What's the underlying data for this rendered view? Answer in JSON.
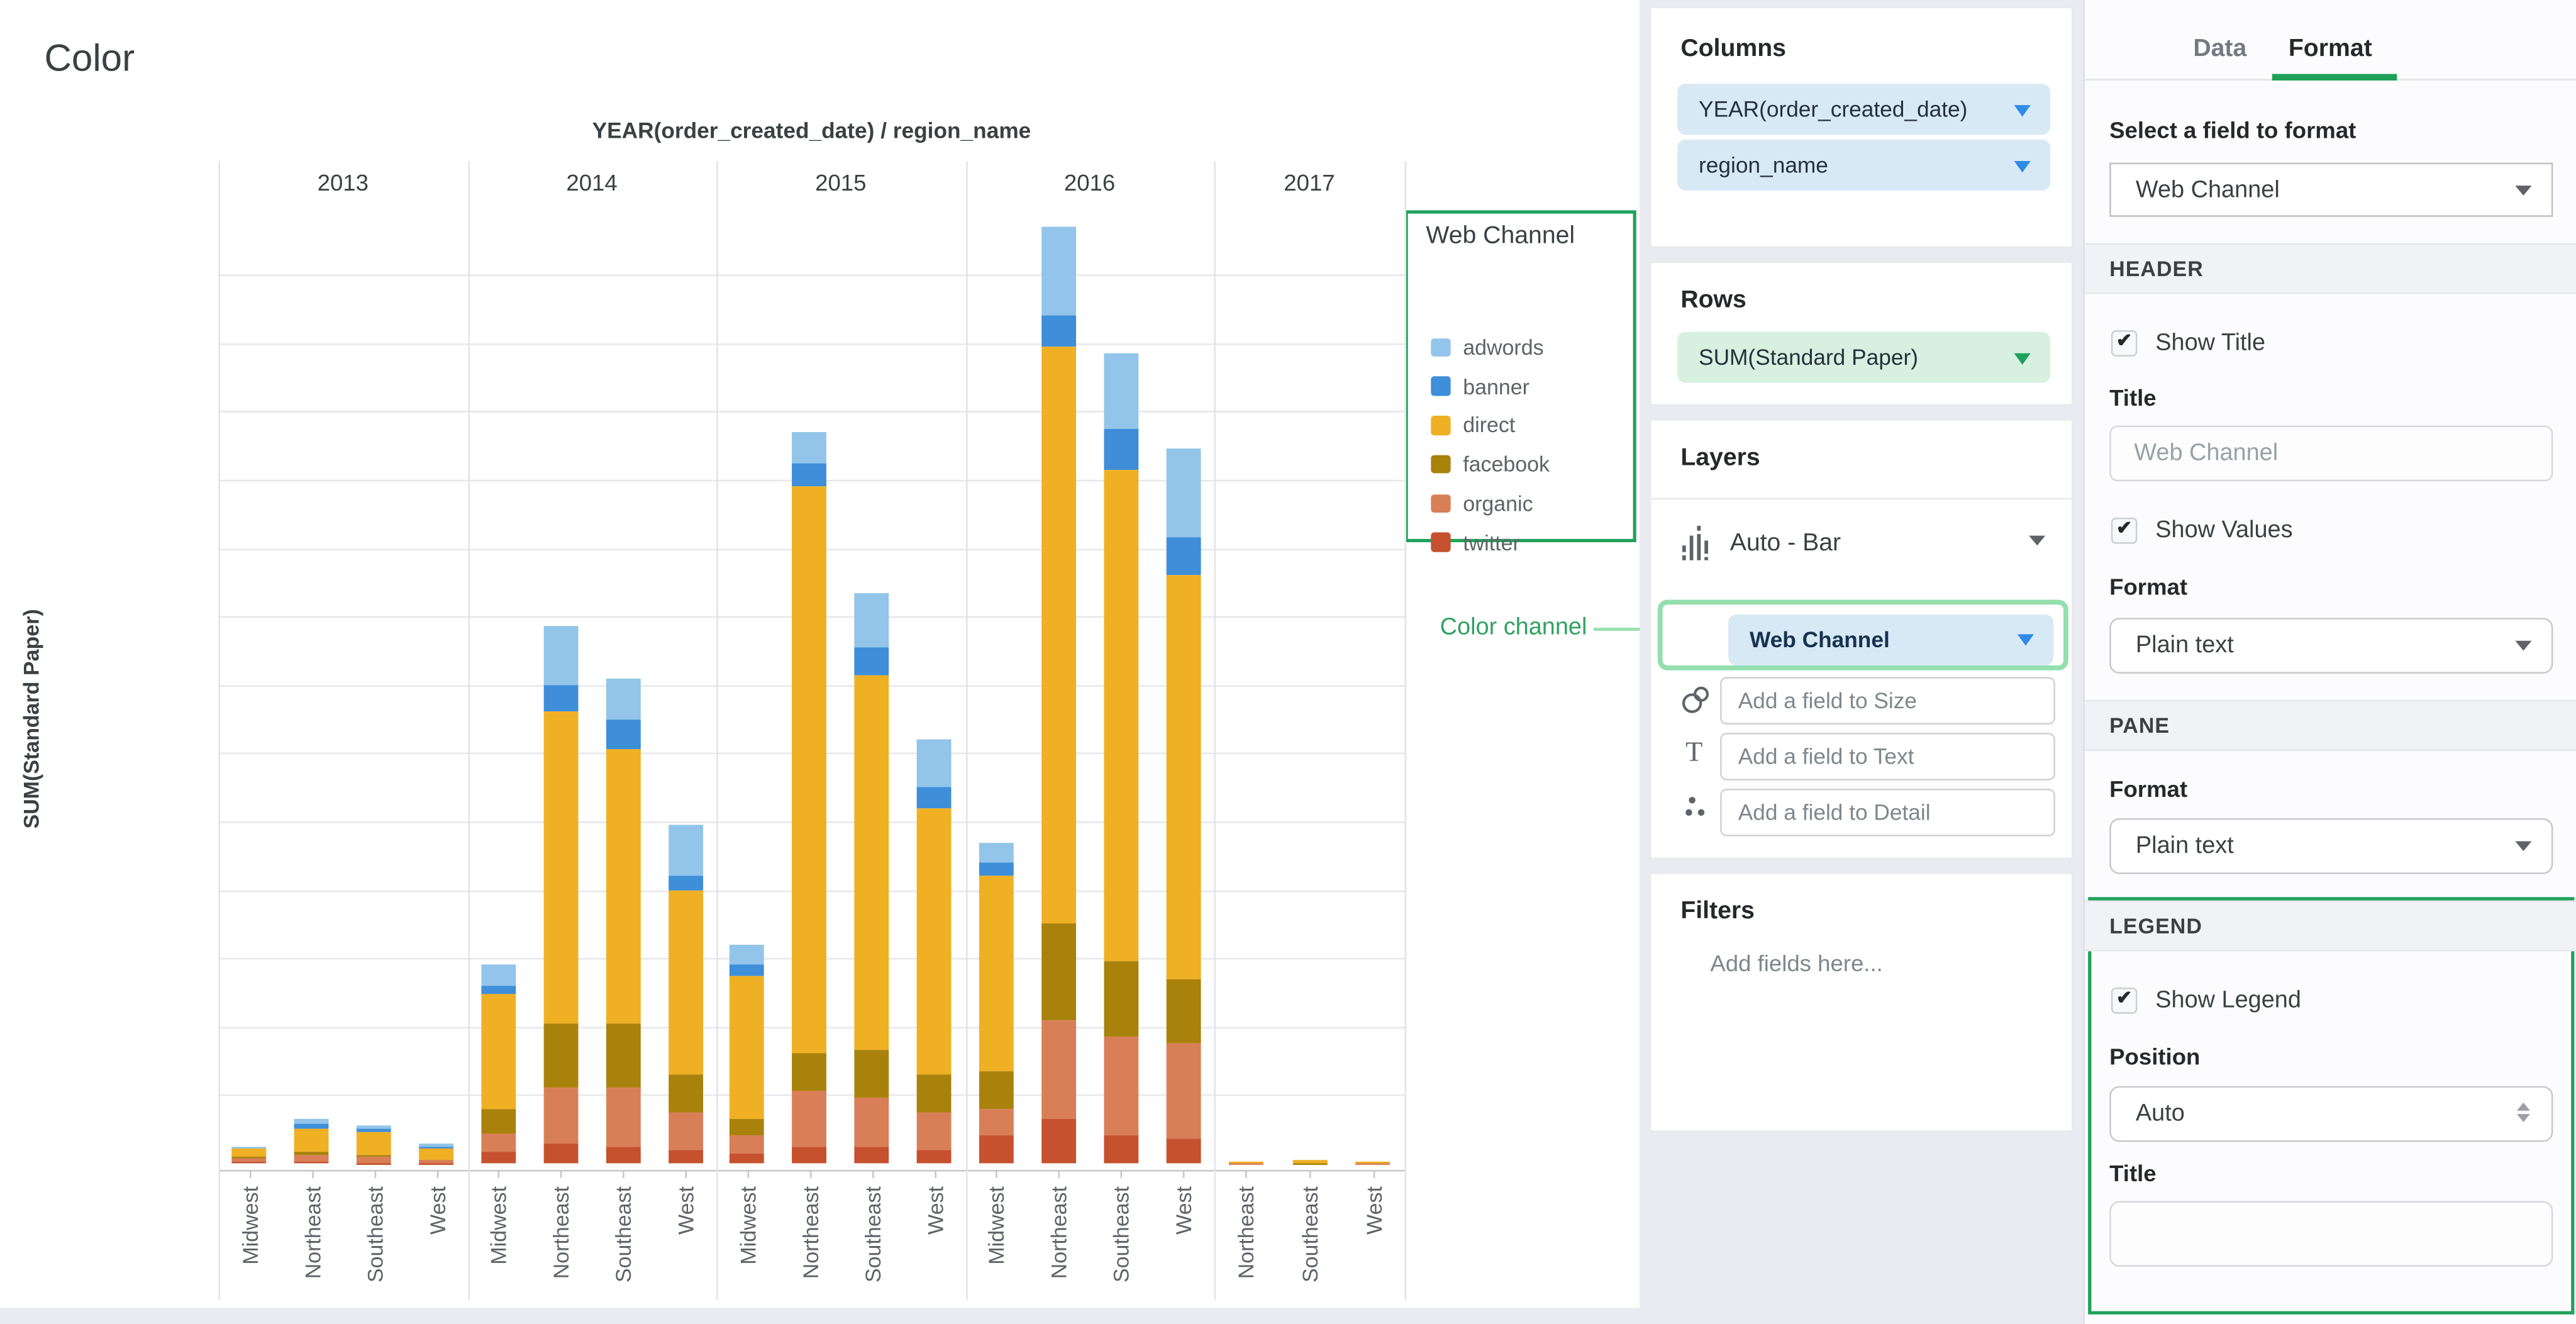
{
  "chart": {
    "title": "Color",
    "axis_header": "YEAR(order_created_date) / region_name",
    "y_axis_title": "SUM(Standard Paper)",
    "legend": {
      "title": "Web Channel"
    },
    "annotation": {
      "label": "Color channel"
    }
  },
  "chart_data": {
    "type": "bar",
    "stacked": true,
    "title": "Color",
    "xlabel": "YEAR(order_created_date) / region_name",
    "ylabel": "SUM(Standard Paper)",
    "ylim": [
      0,
      14000000
    ],
    "y_ticks": [
      0,
      1000000,
      2000000,
      3000000,
      4000000,
      5000000,
      6000000,
      7000000,
      8000000,
      9000000,
      10000000,
      11000000,
      12000000,
      13000000
    ],
    "grid": true,
    "legend_position": "right",
    "stack_order": [
      "twitter",
      "organic",
      "facebook",
      "direct",
      "banner",
      "adwords"
    ],
    "legend_order": [
      "adwords",
      "banner",
      "direct",
      "facebook",
      "organic",
      "twitter"
    ],
    "colors": {
      "adwords": "#92C5E9",
      "banner": "#3E8ED9",
      "direct": "#F0B023",
      "facebook": "#A9820C",
      "organic": "#D97F58",
      "twitter": "#C6512E"
    },
    "groups": [
      {
        "year": "2013",
        "bars": [
          {
            "region": "Midwest",
            "values": {
              "twitter": 30000,
              "organic": 50000,
              "facebook": 20000,
              "direct": 120000,
              "banner": 5000,
              "adwords": 15000
            }
          },
          {
            "region": "Northeast",
            "values": {
              "twitter": 20000,
              "organic": 90000,
              "facebook": 70000,
              "direct": 320000,
              "banner": 80000,
              "adwords": 60000
            }
          },
          {
            "region": "Southeast",
            "values": {
              "twitter": 10000,
              "organic": 80000,
              "facebook": 40000,
              "direct": 320000,
              "banner": 60000,
              "adwords": 50000
            }
          },
          {
            "region": "West",
            "values": {
              "twitter": 10000,
              "organic": 40000,
              "facebook": 10000,
              "direct": 150000,
              "banner": 25000,
              "adwords": 45000
            }
          }
        ]
      },
      {
        "year": "2014",
        "bars": [
          {
            "region": "Midwest",
            "values": {
              "twitter": 160000,
              "organic": 280000,
              "facebook": 350000,
              "direct": 1690000,
              "banner": 120000,
              "adwords": 300000
            }
          },
          {
            "region": "Northeast",
            "values": {
              "twitter": 300000,
              "organic": 800000,
              "facebook": 950000,
              "direct": 4550000,
              "banner": 400000,
              "adwords": 850000
            }
          },
          {
            "region": "Southeast",
            "values": {
              "twitter": 250000,
              "organic": 850000,
              "facebook": 950000,
              "direct": 4000000,
              "banner": 450000,
              "adwords": 600000
            }
          },
          {
            "region": "West",
            "values": {
              "twitter": 200000,
              "organic": 550000,
              "facebook": 550000,
              "direct": 2700000,
              "banner": 200000,
              "adwords": 750000
            }
          }
        ]
      },
      {
        "year": "2015",
        "bars": [
          {
            "region": "Midwest",
            "values": {
              "twitter": 150000,
              "organic": 250000,
              "facebook": 250000,
              "direct": 2100000,
              "banner": 150000,
              "adwords": 300000
            }
          },
          {
            "region": "Northeast",
            "values": {
              "twitter": 250000,
              "organic": 800000,
              "facebook": 550000,
              "direct": 8300000,
              "banner": 350000,
              "adwords": 450000
            }
          },
          {
            "region": "Southeast",
            "values": {
              "twitter": 250000,
              "organic": 700000,
              "facebook": 700000,
              "direct": 5500000,
              "banner": 400000,
              "adwords": 800000
            }
          },
          {
            "region": "West",
            "values": {
              "twitter": 200000,
              "organic": 550000,
              "facebook": 550000,
              "direct": 3900000,
              "banner": 300000,
              "adwords": 700000
            }
          }
        ]
      },
      {
        "year": "2016",
        "bars": [
          {
            "region": "Midwest",
            "values": {
              "twitter": 400000,
              "organic": 400000,
              "facebook": 550000,
              "direct": 2850000,
              "banner": 200000,
              "adwords": 300000
            }
          },
          {
            "region": "Northeast",
            "values": {
              "twitter": 650000,
              "organic": 1450000,
              "facebook": 1400000,
              "direct": 8450000,
              "banner": 450000,
              "adwords": 1300000
            }
          },
          {
            "region": "Southeast",
            "values": {
              "twitter": 400000,
              "organic": 1450000,
              "facebook": 1100000,
              "direct": 7200000,
              "banner": 600000,
              "adwords": 1100000
            }
          },
          {
            "region": "West",
            "values": {
              "twitter": 350000,
              "organic": 1400000,
              "facebook": 950000,
              "direct": 5900000,
              "banner": 550000,
              "adwords": 1300000
            }
          }
        ]
      },
      {
        "year": "2017",
        "bars": [
          {
            "region": "Northeast",
            "values": {
              "twitter": 0,
              "organic": 10000,
              "facebook": 0,
              "direct": 20000,
              "banner": 0,
              "adwords": 0
            }
          },
          {
            "region": "Southeast",
            "values": {
              "twitter": 0,
              "organic": 0,
              "facebook": 10000,
              "direct": 50000,
              "banner": 0,
              "adwords": 0
            }
          },
          {
            "region": "West",
            "values": {
              "twitter": 0,
              "organic": 5000,
              "facebook": 0,
              "direct": 10000,
              "banner": 0,
              "adwords": 0
            }
          }
        ]
      }
    ]
  },
  "columns_panel": {
    "title": "Columns",
    "fields": [
      {
        "label": "YEAR(order_created_date)"
      },
      {
        "label": "region_name"
      }
    ]
  },
  "rows_panel": {
    "title": "Rows",
    "fields": [
      {
        "label": "SUM(Standard Paper)"
      }
    ]
  },
  "layers_panel": {
    "title": "Layers",
    "chart_type": "Auto - Bar",
    "color_field": "Web Channel",
    "size_placeholder": "Add a field to Size",
    "text_placeholder": "Add a field to Text",
    "detail_placeholder": "Add a field to Detail"
  },
  "filters_panel": {
    "title": "Filters",
    "placeholder": "Add fields here..."
  },
  "format_panel": {
    "tab_data": "Data",
    "tab_format": "Format",
    "active_tab": "Format",
    "select_field_label": "Select a field to format",
    "selected_field": "Web Channel",
    "header_section": {
      "title": "HEADER",
      "show_title_label": "Show Title",
      "show_title_checked": true,
      "title_label": "Title",
      "title_placeholder": "Web Channel",
      "show_values_label": "Show Values",
      "show_values_checked": true,
      "format_label": "Format",
      "format_value": "Plain text"
    },
    "pane_section": {
      "title": "PANE",
      "format_label": "Format",
      "format_value": "Plain text"
    },
    "legend_section": {
      "title": "LEGEND",
      "show_legend_label": "Show Legend",
      "show_legend_checked": true,
      "position_label": "Position",
      "position_value": "Auto",
      "title_label": "Title",
      "title_value": ""
    }
  },
  "accent_colors": {
    "highlight_green": "#1FA15A",
    "soft_green": "#93DFAD",
    "pill_blue_bg": "#D8E9F6",
    "pill_green_bg": "#D7F0E0",
    "channel_icon": [
      "#4A90D2",
      "#E8A33D",
      "#E0575A"
    ]
  }
}
